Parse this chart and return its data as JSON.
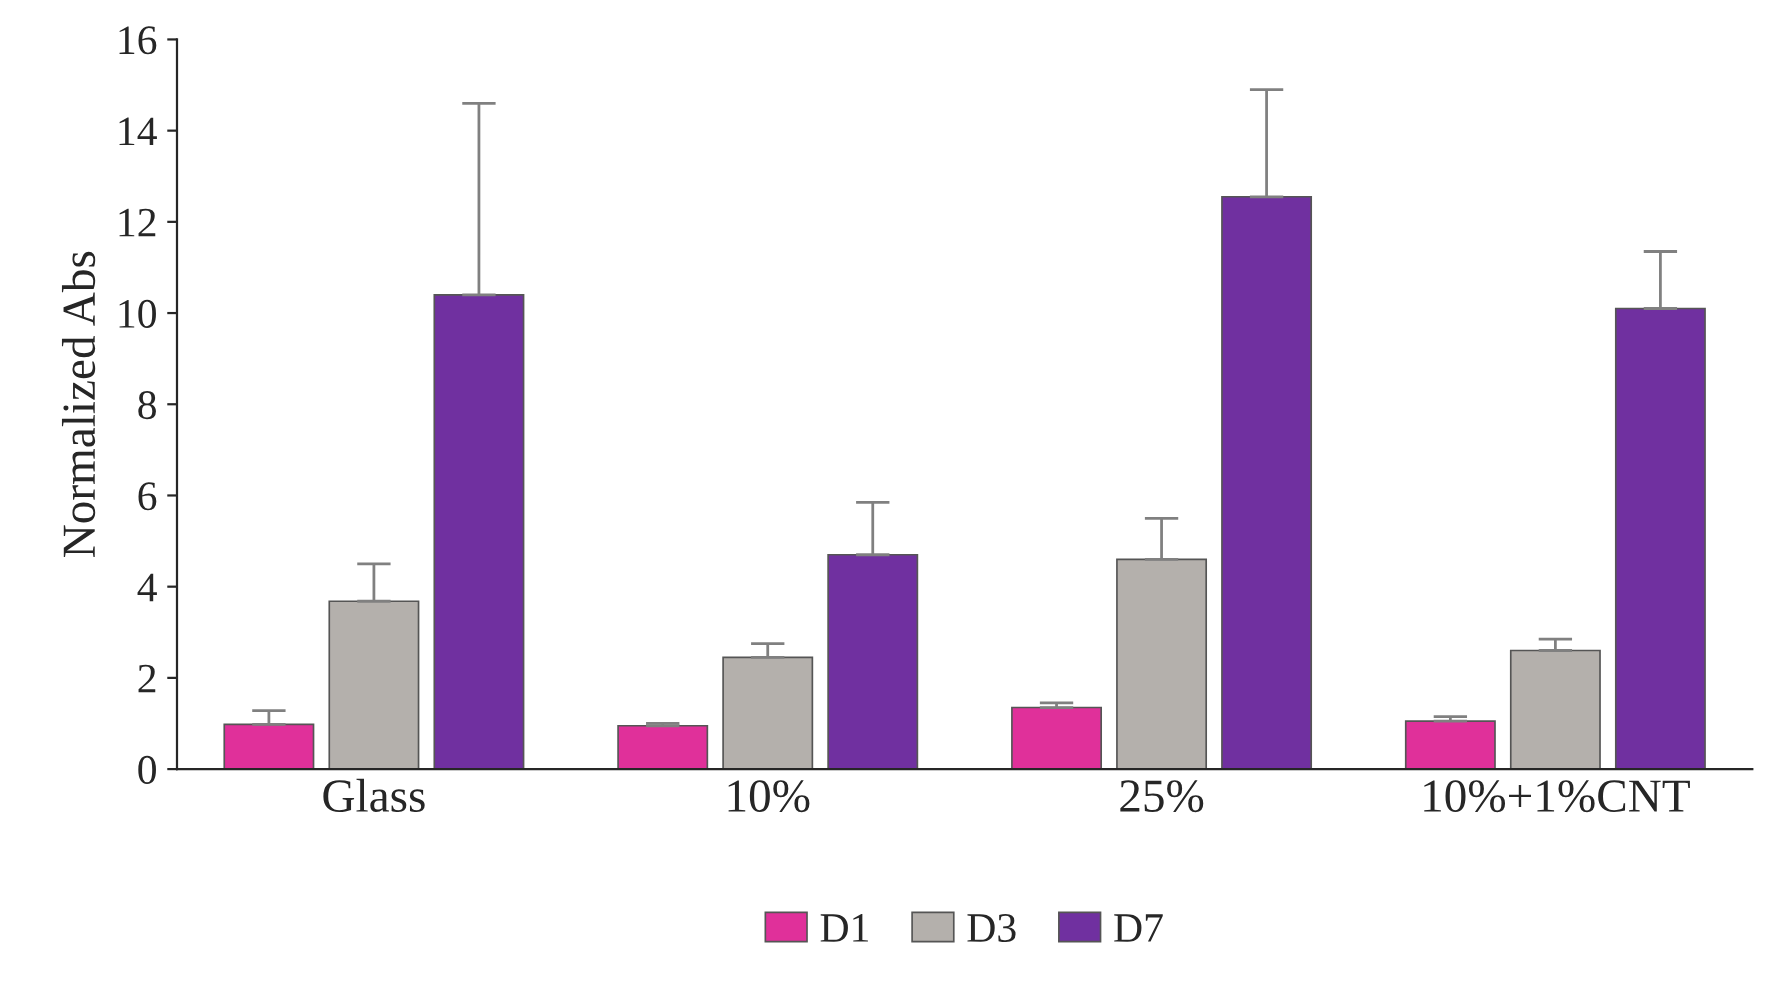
{
  "chart_data": {
    "type": "bar",
    "ylabel": "Normalized Abs",
    "categories": [
      "Glass",
      "10%",
      "25%",
      "10%+1%CNT"
    ],
    "series": [
      {
        "name": "D1",
        "color": "#e0309a",
        "values": [
          0.98,
          0.95,
          1.35,
          1.05
        ],
        "errors": [
          [
            0.98,
            1.28
          ],
          [
            0.95,
            1.0
          ],
          [
            1.35,
            1.45
          ],
          [
            1.05,
            1.15
          ]
        ]
      },
      {
        "name": "D3",
        "color": "#b4b0ac",
        "values": [
          3.68,
          2.45,
          4.6,
          2.6
        ],
        "errors": [
          [
            3.68,
            4.5
          ],
          [
            2.45,
            2.75
          ],
          [
            4.6,
            5.5
          ],
          [
            2.6,
            2.85
          ]
        ]
      },
      {
        "name": "D7",
        "color": "#7030a0",
        "values": [
          10.4,
          4.7,
          12.55,
          10.1
        ],
        "errors": [
          [
            10.4,
            14.6
          ],
          [
            4.7,
            5.85
          ],
          [
            12.55,
            14.9
          ],
          [
            10.1,
            11.35
          ]
        ]
      }
    ],
    "ylim": [
      0,
      16
    ],
    "yticks": [
      0,
      2,
      4,
      6,
      8,
      10,
      12,
      14,
      16
    ],
    "grid": false,
    "legend": "bottom"
  }
}
